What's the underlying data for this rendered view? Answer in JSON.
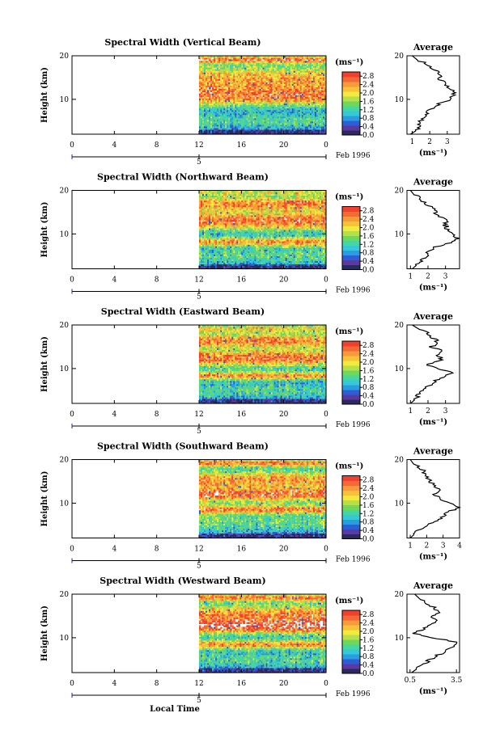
{
  "colors": {
    "palette": [
      "#2a2a5e",
      "#5a3aa0",
      "#2c5fd6",
      "#2a9de0",
      "#35c8d8",
      "#46d6a0",
      "#6fd85a",
      "#b6e04a",
      "#f2ea3c",
      "#f7c23a",
      "#f79a3a",
      "#f46a36",
      "#f0402e"
    ],
    "gap": "#ffffff"
  },
  "shared": {
    "height_label": "Height (km)",
    "avg_title": "Average",
    "units": "(ms⁻¹)",
    "x_ticks": [
      "0",
      "4",
      "8",
      "12",
      "16",
      "20",
      "0"
    ],
    "day_marker": "5",
    "date_label": "Feb 1996",
    "x_axis_label": "Local Time"
  },
  "chart_data": [
    {
      "type": "heatmap",
      "title": "Spectral Width (Vertical Beam)",
      "xlabel": "",
      "ylabel": "Height (km)",
      "x_range_hours": [
        0,
        24
      ],
      "data_starts_hour": 12,
      "y_range_km": [
        2,
        20
      ],
      "y_ticks": [
        "10",
        "20"
      ],
      "colorbar": {
        "unit": "(ms⁻¹)",
        "ticks": [
          "2.8",
          "2.4",
          "2.0",
          "1.6",
          "1.2",
          "0.8",
          "0.4",
          "0.0"
        ],
        "range": [
          0,
          3.0
        ]
      },
      "profile": {
        "title": "Average",
        "xlabel": "(ms⁻¹)",
        "x_ticks": [
          "1",
          "2",
          "3"
        ],
        "x_range": [
          0.7,
          3.7
        ],
        "heights": [
          2,
          3,
          4,
          5,
          6,
          7,
          8,
          9,
          10,
          11,
          12,
          13,
          14,
          15,
          16,
          17,
          18,
          19,
          20
        ],
        "values": [
          0.9,
          1.3,
          1.4,
          1.5,
          1.6,
          1.8,
          2.1,
          2.6,
          3.1,
          3.3,
          3.4,
          3.0,
          2.8,
          2.5,
          2.6,
          2.2,
          1.9,
          1.3,
          1.0
        ]
      }
    },
    {
      "type": "heatmap",
      "title": "Spectral Width (Northward Beam)",
      "xlabel": "",
      "ylabel": "Height (km)",
      "x_range_hours": [
        0,
        24
      ],
      "data_starts_hour": 12,
      "y_range_km": [
        2,
        20
      ],
      "y_ticks": [
        "10",
        "20"
      ],
      "colorbar": {
        "unit": "(ms⁻¹)",
        "ticks": [
          "2.8",
          "2.4",
          "2.0",
          "1.6",
          "1.2",
          "0.8",
          "0.4",
          "0.0"
        ],
        "range": [
          0,
          3.0
        ]
      },
      "profile": {
        "title": "Average",
        "xlabel": "(ms⁻¹)",
        "x_ticks": [
          "1",
          "2",
          "3"
        ],
        "x_range": [
          0.8,
          3.8
        ],
        "heights": [
          2,
          3,
          4,
          5,
          6,
          7,
          8,
          9,
          10,
          11,
          12,
          13,
          14,
          15,
          16,
          17,
          18,
          19,
          20
        ],
        "values": [
          1.1,
          1.4,
          1.6,
          1.9,
          2.1,
          2.4,
          3.4,
          3.8,
          3.3,
          3.1,
          3.0,
          3.1,
          2.6,
          2.4,
          2.2,
          1.9,
          1.6,
          1.2,
          1.0
        ]
      }
    },
    {
      "type": "heatmap",
      "title": "Spectral Width (Eastward Beam)",
      "xlabel": "",
      "ylabel": "Height (km)",
      "x_range_hours": [
        0,
        24
      ],
      "data_starts_hour": 12,
      "y_range_km": [
        2,
        20
      ],
      "y_ticks": [
        "10",
        "20"
      ],
      "colorbar": {
        "unit": "(ms⁻¹)",
        "ticks": [
          "2.8",
          "2.4",
          "2.0",
          "1.6",
          "1.2",
          "0.8",
          "0.4",
          "0.0"
        ],
        "range": [
          0,
          3.0
        ]
      },
      "profile": {
        "title": "Average",
        "xlabel": "(ms⁻¹)",
        "x_ticks": [
          "1",
          "2",
          "3"
        ],
        "x_range": [
          0.8,
          3.8
        ],
        "heights": [
          2,
          3,
          4,
          5,
          6,
          7,
          8,
          9,
          10,
          11,
          12,
          13,
          14,
          15,
          16,
          17,
          18,
          19,
          20
        ],
        "values": [
          1.0,
          1.3,
          1.5,
          1.7,
          2.0,
          2.3,
          2.8,
          3.5,
          2.4,
          1.9,
          2.8,
          2.6,
          2.9,
          2.2,
          2.6,
          2.3,
          2.0,
          1.5,
          1.1
        ]
      }
    },
    {
      "type": "heatmap",
      "title": "Spectral Width (Southward Beam)",
      "xlabel": "",
      "ylabel": "Height (km)",
      "x_range_hours": [
        0,
        24
      ],
      "data_starts_hour": 12,
      "y_range_km": [
        2,
        20
      ],
      "y_ticks": [
        "10",
        "20"
      ],
      "colorbar": {
        "unit": "(ms⁻¹)",
        "ticks": [
          "2.8",
          "2.4",
          "2.0",
          "1.6",
          "1.2",
          "0.8",
          "0.4",
          "0.0"
        ],
        "range": [
          0,
          3.0
        ]
      },
      "profile": {
        "title": "Average",
        "xlabel": "(ms⁻¹)",
        "x_ticks": [
          "1",
          "2",
          "3",
          "4"
        ],
        "x_range": [
          0.8,
          4.0
        ],
        "heights": [
          2,
          3,
          4,
          5,
          6,
          7,
          8,
          9,
          10,
          11,
          12,
          13,
          14,
          15,
          16,
          17,
          18,
          19,
          20
        ],
        "values": [
          1.0,
          1.3,
          1.6,
          2.1,
          2.6,
          3.0,
          3.4,
          3.9,
          3.6,
          2.8,
          2.5,
          2.7,
          2.4,
          2.2,
          2.0,
          1.9,
          1.6,
          1.2,
          1.0
        ]
      }
    },
    {
      "type": "heatmap",
      "title": "Spectral Width (Westward Beam)",
      "xlabel": "Local Time",
      "ylabel": "Height (km)",
      "x_range_hours": [
        0,
        24
      ],
      "data_starts_hour": 12,
      "y_range_km": [
        2,
        20
      ],
      "y_ticks": [
        "10",
        "20"
      ],
      "colorbar": {
        "unit": "(ms⁻¹)",
        "ticks": [
          "2.8",
          "2.4",
          "2.0",
          "1.6",
          "1.2",
          "0.8",
          "0.4",
          "0.0"
        ],
        "range": [
          0,
          3.0
        ]
      },
      "profile": {
        "title": "Average",
        "xlabel": "(ms⁻¹)",
        "x_ticks": [
          "0.5",
          "3.5"
        ],
        "x_range": [
          0.3,
          3.7
        ],
        "heights": [
          2,
          3,
          4,
          5,
          6,
          7,
          8,
          9,
          10,
          11,
          12,
          13,
          14,
          15,
          16,
          17,
          18,
          19,
          20
        ],
        "values": [
          0.6,
          1.0,
          1.4,
          1.8,
          2.3,
          2.8,
          3.3,
          3.5,
          2.0,
          0.7,
          1.4,
          1.8,
          2.2,
          1.9,
          2.4,
          2.0,
          1.5,
          1.1,
          0.8
        ]
      }
    }
  ]
}
